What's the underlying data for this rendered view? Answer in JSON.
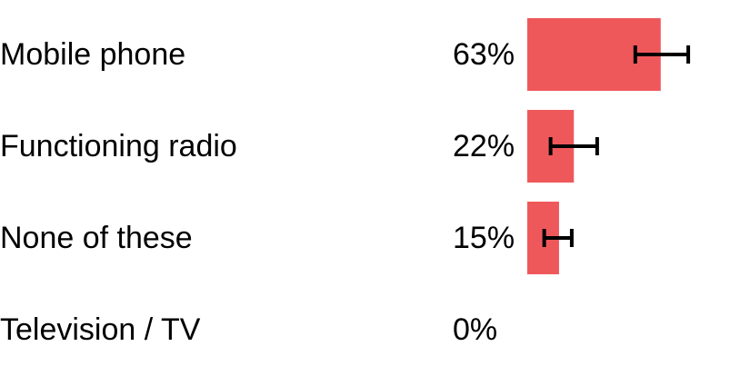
{
  "chart_data": {
    "type": "bar",
    "orientation": "horizontal",
    "categories": [
      "Mobile phone",
      "Functioning radio",
      "None of these",
      "Television / TV"
    ],
    "values": [
      63,
      22,
      15,
      0
    ],
    "value_labels": [
      "63%",
      "22%",
      "15%",
      "0%"
    ],
    "error_bars": [
      {
        "low": 51,
        "high": 76
      },
      {
        "low": 11,
        "high": 33
      },
      {
        "low": 8,
        "high": 21
      },
      null
    ],
    "unit": "%",
    "xlim": [
      0,
      100
    ],
    "grid": false,
    "legend": "none",
    "bar_color": "#ef585b",
    "error_bar_color": "#000000"
  }
}
